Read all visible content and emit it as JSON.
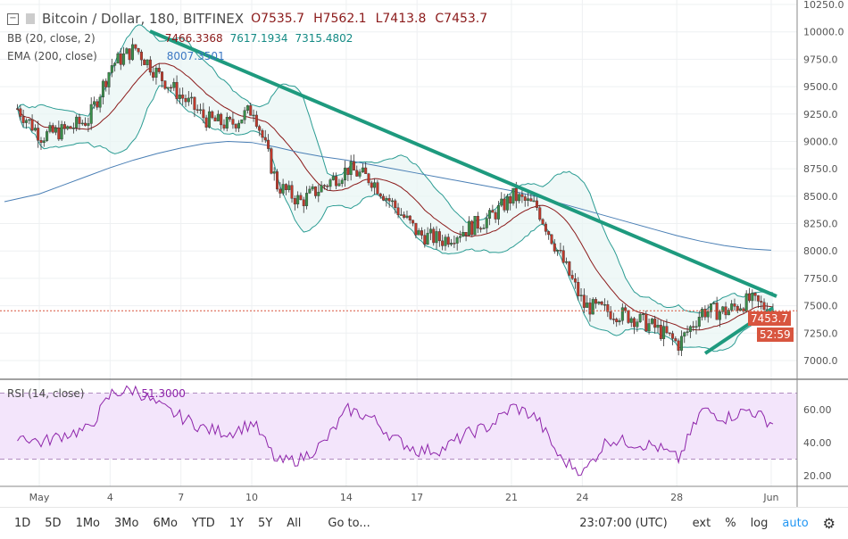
{
  "header": {
    "symbol": "Bitcoin / Dollar, 180, BITFINEX",
    "open": "O7535.7",
    "high": "H7562.1",
    "low": "L7413.8",
    "close": "C7453.7"
  },
  "indicators": {
    "bb_label": "BB (20, close, 2)",
    "bb_basis": "7466.3368",
    "bb_upper": "7617.1934",
    "bb_lower": "7315.4802",
    "ema_label": "EMA (200, close)",
    "ema_value": "8007.3501",
    "rsi_label": "RSI (14, close)",
    "rsi_value": "51.3000"
  },
  "price_tag": "7453.7",
  "countdown": "52:59",
  "toolbar": {
    "ranges": [
      "1D",
      "5D",
      "1Mo",
      "3Mo",
      "6Mo",
      "YTD",
      "1Y",
      "5Y",
      "All"
    ],
    "goto": "Go to...",
    "time": "23:07:00 (UTC)",
    "ext": "ext",
    "pct": "%",
    "log": "log",
    "auto": "auto"
  },
  "colors": {
    "up": "#3a8f4a",
    "down": "#c0392b",
    "trend": "#1e9a7e",
    "bb": "#2b9c93",
    "basis": "#8b1a1a",
    "ema": "#4a7fb5",
    "rsi": "#8e24aa"
  },
  "chart_data": {
    "type": "candlestick",
    "price_axis": {
      "ylim": [
        7000,
        10250
      ],
      "ticks": [
        "10250.0",
        "10000.0",
        "9750.0",
        "9500.0",
        "9250.0",
        "9000.0",
        "8750.0",
        "8500.0",
        "8250.0",
        "8000.0",
        "7750.0",
        "7500.0",
        "7250.0",
        "7000.0"
      ]
    },
    "rsi_axis": {
      "ticks": [
        "60.00",
        "40.00",
        "20.00"
      ],
      "bands": [
        30,
        70
      ]
    },
    "x_ticks": [
      "May",
      "4",
      "7",
      "10",
      "14",
      "17",
      "21",
      "24",
      "28",
      "Jun"
    ],
    "daily_close": [
      9300,
      9050,
      9100,
      9200,
      9700,
      9850,
      9600,
      9400,
      9200,
      9150,
      9300,
      8600,
      8450,
      8600,
      8750,
      8650,
      8400,
      8150,
      8100,
      8200,
      8300,
      8500,
      8400,
      7950,
      7500,
      7450,
      7400,
      7300,
      7150,
      7450,
      7450,
      7550,
      7454
    ],
    "ema200": [
      8450,
      8520,
      8600,
      8680,
      8760,
      8830,
      8890,
      8940,
      8980,
      9000,
      8990,
      8950,
      8900,
      8860,
      8830,
      8790,
      8750,
      8710,
      8670,
      8630,
      8590,
      8550,
      8500,
      8440,
      8380,
      8320,
      8260,
      8200,
      8140,
      8090,
      8050,
      8020,
      8007
    ],
    "rsi": [
      45,
      40,
      45,
      48,
      70,
      72,
      62,
      55,
      48,
      46,
      52,
      28,
      30,
      40,
      60,
      55,
      42,
      35,
      36,
      45,
      50,
      62,
      55,
      30,
      22,
      42,
      40,
      38,
      30,
      60,
      55,
      60,
      51.3
    ]
  }
}
